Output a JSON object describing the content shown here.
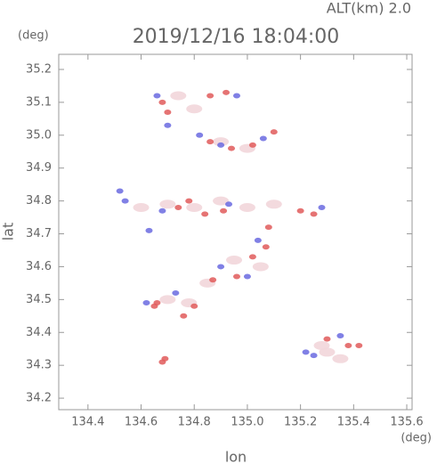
{
  "chart_data": {
    "type": "scatter",
    "title": "2019/12/16 18:04:00",
    "annotation": "ALT(km)  2.0",
    "y_unit": "(deg)",
    "x_unit": "(deg)",
    "xlabel": "lon",
    "ylabel": "lat",
    "xlim": [
      134.29,
      135.62
    ],
    "ylim": [
      34.165,
      35.246
    ],
    "xticks": [
      134.4,
      134.6,
      134.8,
      {
        "value": 135,
        "label": "135.0"
      },
      135.2,
      135.4,
      135.6
    ],
    "yticks": [
      34.2,
      34.3,
      34.4,
      34.5,
      34.6,
      34.7,
      34.8,
      34.9,
      {
        "value": 35,
        "label": "35.0"
      },
      35.1,
      35.2
    ],
    "series": [
      {
        "color": "#f2d6da",
        "x": [
          135.3,
          135.35,
          135.28,
          134.7,
          134.78,
          134.85,
          134.95,
          135.05,
          134.6,
          134.7,
          134.8,
          134.9,
          135.0,
          135.1,
          134.9,
          135.0,
          134.8,
          134.74
        ],
        "values": [
          34.34,
          34.32,
          34.36,
          34.5,
          34.49,
          34.55,
          34.62,
          34.6,
          34.78,
          34.79,
          34.78,
          34.8,
          34.78,
          34.79,
          34.98,
          34.96,
          35.08,
          35.12
        ]
      },
      {
        "color": "#e05a5a",
        "x": [
          134.68,
          134.69,
          135.38,
          135.42,
          135.3,
          134.65,
          134.66,
          134.8,
          134.76,
          134.87,
          134.96,
          135.02,
          135.07,
          134.84,
          134.91,
          134.78,
          135.2,
          135.25,
          134.86,
          134.94,
          135.02,
          135.1,
          134.68,
          134.7,
          134.86,
          134.92,
          134.74,
          135.08
        ],
        "values": [
          34.31,
          34.32,
          34.36,
          34.36,
          34.38,
          34.48,
          34.49,
          34.48,
          34.45,
          34.56,
          34.57,
          34.63,
          34.66,
          34.76,
          34.77,
          34.8,
          34.77,
          34.76,
          34.98,
          34.96,
          34.97,
          35.01,
          35.1,
          35.07,
          35.12,
          35.13,
          34.78,
          34.72
        ]
      },
      {
        "color": "#6a6ae0",
        "x": [
          135.25,
          135.22,
          135.35,
          134.52,
          134.54,
          134.62,
          134.73,
          134.9,
          135.0,
          134.93,
          134.68,
          135.04,
          134.82,
          134.9,
          135.06,
          134.66,
          134.7,
          134.96,
          135.28,
          134.63
        ],
        "values": [
          34.33,
          34.34,
          34.39,
          34.83,
          34.8,
          34.49,
          34.52,
          34.6,
          34.57,
          34.79,
          34.77,
          34.68,
          35.0,
          34.97,
          34.99,
          35.12,
          35.03,
          35.12,
          34.78,
          34.71
        ]
      }
    ]
  }
}
